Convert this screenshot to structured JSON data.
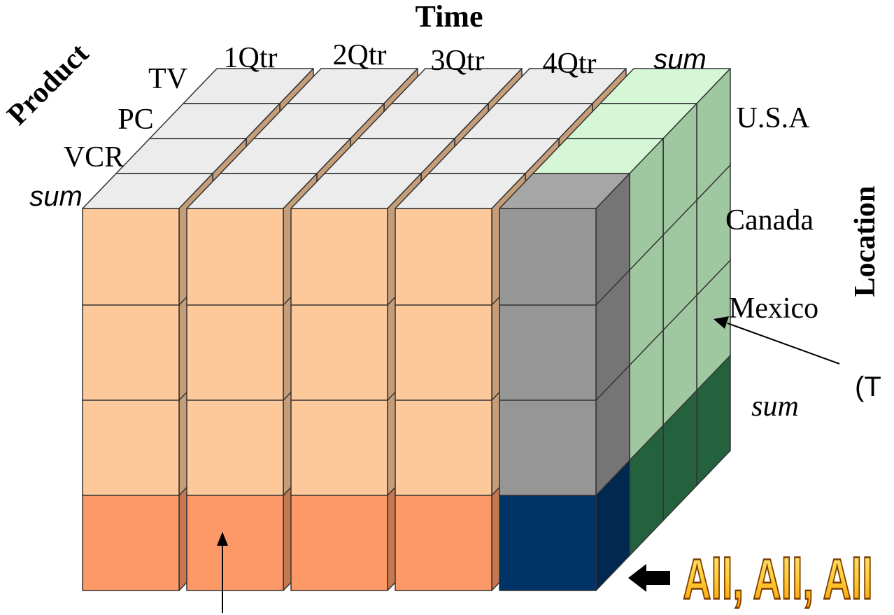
{
  "axes": {
    "time": {
      "title": "Time",
      "labels": [
        "1Qtr",
        "2Qtr",
        "3Qtr",
        "4Qtr",
        "sum"
      ]
    },
    "product": {
      "title": "Product",
      "labels": [
        "TV",
        "PC",
        "VCR",
        "sum"
      ]
    },
    "location": {
      "title": "Location",
      "labels": [
        "U.S.A",
        "Canada",
        "Mexico",
        "sum"
      ]
    }
  },
  "annotations": {
    "right_callout": "(T",
    "all_label": "All, All, All"
  },
  "colors": {
    "top_gray": "#ececec",
    "front_peach": "#fdc99b",
    "front_sum_row": "#fd9966",
    "gray_column": "#969696",
    "navy_corner": "#003366",
    "light_green": "#cdf5cd",
    "mid_green": "#a0c8a0",
    "dark_green": "#2e7d50",
    "all_label_fill": "#ffcc33"
  }
}
